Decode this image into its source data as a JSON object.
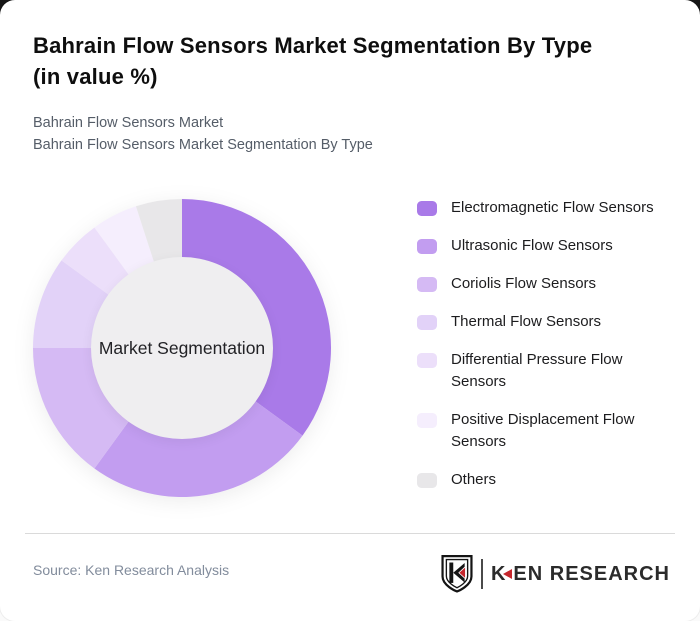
{
  "header": {
    "title": "Bahrain Flow Sensors Market Segmentation By Type\n(in value %)",
    "subtitle1": "Bahrain Flow Sensors Market",
    "subtitle2": "Bahrain Flow Sensors Market Segmentation By Type"
  },
  "chart_data": {
    "type": "pie",
    "variant": "donut",
    "title": "Bahrain Flow Sensors Market Segmentation By Type (in value %)",
    "center_label": "Market Segmentation",
    "categories": [
      "Electromagnetic Flow Sensors",
      "Ultrasonic Flow Sensors",
      "Coriolis Flow Sensors",
      "Thermal Flow Sensors",
      "Differential Pressure Flow Sensors",
      "Positive Displacement Flow Sensors",
      "Others"
    ],
    "values": [
      35,
      25,
      15,
      10,
      5,
      5,
      5
    ],
    "unit": "%",
    "data_labels_shown": false,
    "start_angle_deg": 0,
    "direction": "clockwise",
    "inner_radius_ratio": 0.6,
    "legend_position": "right",
    "colors": [
      "#a97ae8",
      "#c29df0",
      "#d5baf4",
      "#e2d2f8",
      "#ecdffa",
      "#f5eefd",
      "#e8e7e9"
    ],
    "center_circle_color": "#efeef0"
  },
  "legend": {
    "items": [
      {
        "label": "Electromagnetic Flow Sensors",
        "color": "#a97ae8"
      },
      {
        "label": "Ultrasonic Flow Sensors",
        "color": "#c29df0"
      },
      {
        "label": "Coriolis Flow Sensors",
        "color": "#d5baf4"
      },
      {
        "label": "Thermal Flow Sensors",
        "color": "#e2d2f8"
      },
      {
        "label": "Differential Pressure Flow Sensors",
        "color": "#ecdffa"
      },
      {
        "label": "Positive Displacement Flow Sensors",
        "color": "#f5eefd"
      },
      {
        "label": "Others",
        "color": "#e8e7e9"
      }
    ]
  },
  "footer": {
    "source": "Source: Ken Research Analysis",
    "logo_text_k": "K",
    "logo_text_rest": "EN RESEARCH"
  },
  "colors": {
    "accent_red": "#c5262c",
    "page_top_background": "#161616",
    "card_background": "#ffffff"
  }
}
